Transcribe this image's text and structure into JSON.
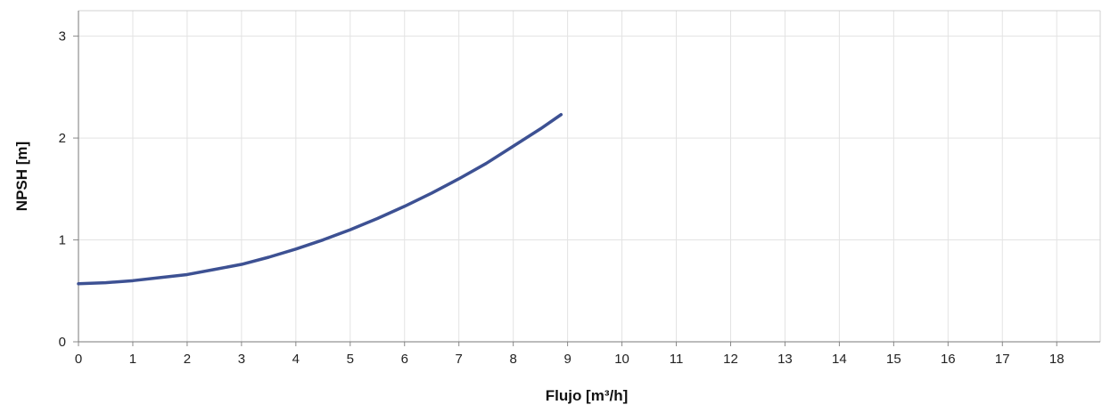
{
  "chart_data": {
    "type": "line",
    "title": "",
    "xlabel": "Flujo [m³/h]",
    "ylabel": "NPSH [m]",
    "xlim": [
      0,
      18.8
    ],
    "ylim": [
      0,
      3.25
    ],
    "x_ticks": [
      "0",
      "1",
      "2",
      "3",
      "4",
      "5",
      "6",
      "7",
      "8",
      "9",
      "10",
      "11",
      "12",
      "13",
      "14",
      "15",
      "16",
      "17",
      "18"
    ],
    "y_ticks": [
      "0",
      "1",
      "2",
      "3"
    ],
    "grid": true,
    "legend": "none",
    "series": [
      {
        "color": "#3d5193",
        "x": [
          0,
          0.5,
          1,
          1.5,
          2,
          2.5,
          3,
          3.5,
          4,
          4.5,
          5,
          5.5,
          6,
          6.5,
          7,
          7.5,
          8,
          8.5,
          8.88
        ],
        "y": [
          0.57,
          0.58,
          0.6,
          0.63,
          0.66,
          0.71,
          0.76,
          0.83,
          0.91,
          1.0,
          1.1,
          1.21,
          1.33,
          1.46,
          1.6,
          1.75,
          1.92,
          2.09,
          2.23
        ]
      }
    ]
  }
}
